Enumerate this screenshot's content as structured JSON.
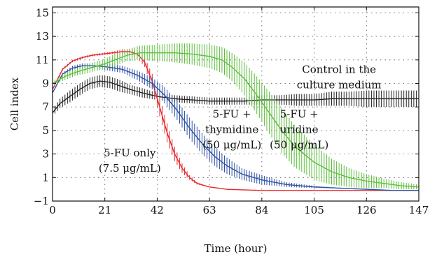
{
  "chart_data": {
    "type": "line",
    "xlabel": "Time (hour)",
    "ylabel": "Cell index",
    "xlim": [
      0,
      147
    ],
    "ylim": [
      -1,
      15.5
    ],
    "xticks": [
      0,
      21,
      42,
      63,
      84,
      105,
      126,
      147
    ],
    "yticks": [
      -1,
      1,
      3,
      5,
      7,
      9,
      11,
      13,
      15
    ],
    "grid": "dotted",
    "legend": "none",
    "series": [
      {
        "color": "#222222",
        "x": [
          0,
          3,
          7,
          11,
          15,
          19,
          23,
          27,
          31,
          36,
          42,
          49,
          56,
          63,
          70,
          77,
          84,
          91,
          98,
          105,
          112,
          119,
          126,
          133,
          140,
          147
        ],
        "y": [
          6.5,
          7.3,
          7.9,
          8.5,
          9.0,
          9.2,
          9.1,
          8.8,
          8.5,
          8.2,
          7.9,
          7.7,
          7.6,
          7.5,
          7.5,
          7.5,
          7.6,
          7.6,
          7.6,
          7.6,
          7.7,
          7.7,
          7.7,
          7.7,
          7.7,
          7.7
        ],
        "err": [
          0.3,
          0.4,
          0.5,
          0.5,
          0.5,
          0.5,
          0.5,
          0.5,
          0.4,
          0.4,
          0.3,
          0.3,
          0.3,
          0.3,
          0.3,
          0.3,
          0.4,
          0.4,
          0.5,
          0.5,
          0.6,
          0.6,
          0.7,
          0.7,
          0.7,
          0.7
        ]
      },
      {
        "color": "#e8262a",
        "x": [
          0,
          4,
          8,
          12,
          16,
          20,
          24,
          28,
          31,
          34,
          37,
          40,
          43,
          46,
          49,
          52,
          55,
          58,
          63,
          70,
          84,
          105,
          126,
          147
        ],
        "y": [
          8.5,
          10.2,
          10.9,
          11.2,
          11.4,
          11.5,
          11.6,
          11.7,
          11.7,
          11.5,
          10.8,
          9.2,
          7.0,
          4.8,
          3.0,
          1.8,
          1.0,
          0.5,
          0.2,
          0.0,
          -0.1,
          -0.1,
          -0.1,
          -0.1
        ],
        "err": [
          0,
          0.1,
          0.1,
          0.1,
          0.1,
          0.1,
          0.1,
          0.2,
          0.2,
          0.3,
          0.4,
          0.6,
          0.8,
          0.8,
          0.6,
          0.4,
          0.2,
          0.1,
          0,
          0,
          0,
          0,
          0,
          0
        ]
      },
      {
        "color": "#2b4fa3",
        "x": [
          0,
          4,
          8,
          12,
          17,
          22,
          28,
          34,
          40,
          45,
          50,
          55,
          60,
          65,
          70,
          76,
          84,
          94,
          105,
          115,
          126,
          137,
          147
        ],
        "y": [
          8.2,
          9.8,
          10.3,
          10.5,
          10.5,
          10.4,
          10.2,
          9.7,
          9.0,
          8.0,
          6.7,
          5.2,
          3.9,
          2.8,
          2.0,
          1.3,
          0.8,
          0.4,
          0.2,
          0.1,
          0.0,
          -0.1,
          -0.1
        ],
        "err": [
          0,
          0.1,
          0.2,
          0.2,
          0.2,
          0.3,
          0.3,
          0.4,
          0.5,
          0.7,
          0.8,
          0.9,
          0.9,
          0.8,
          0.7,
          0.5,
          0.4,
          0.2,
          0.1,
          0,
          0,
          0,
          0
        ]
      },
      {
        "color": "#5bbd3a",
        "x": [
          0,
          5,
          10,
          15,
          20,
          25,
          30,
          35,
          42,
          49,
          56,
          63,
          68,
          72,
          77,
          82,
          87,
          92,
          97,
          105,
          112,
          119,
          126,
          133,
          140,
          147
        ],
        "y": [
          9.0,
          9.6,
          10.0,
          10.3,
          10.6,
          11.0,
          11.4,
          11.6,
          11.6,
          11.6,
          11.5,
          11.3,
          11.0,
          10.4,
          9.4,
          8.0,
          6.5,
          5.0,
          3.7,
          2.3,
          1.5,
          1.0,
          0.7,
          0.5,
          0.3,
          0.2
        ],
        "err": [
          0.2,
          0.3,
          0.3,
          0.4,
          0.4,
          0.5,
          0.5,
          0.6,
          0.7,
          0.8,
          0.9,
          1.0,
          1.1,
          1.2,
          1.4,
          1.6,
          1.8,
          1.9,
          1.8,
          1.5,
          1.1,
          0.8,
          0.6,
          0.4,
          0.3,
          0.2
        ]
      }
    ],
    "annotations": [
      {
        "lines": [
          "Control in the",
          "culture medium"
        ],
        "x": 115,
        "y": 9.9
      },
      {
        "lines": [
          "5-FU +",
          "thymidine",
          "(50 μg/mL)"
        ],
        "x": 72,
        "y": 6.1
      },
      {
        "lines": [
          "5-FU +",
          "uridine",
          "(50 μg/mL)"
        ],
        "x": 99,
        "y": 6.1
      },
      {
        "lines": [
          "5-FU only",
          "(7.5 μg/mL)"
        ],
        "x": 31,
        "y": 2.8
      }
    ]
  }
}
